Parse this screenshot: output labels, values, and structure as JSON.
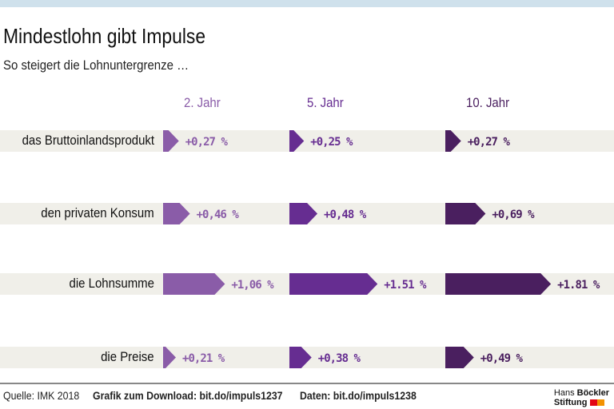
{
  "title": "Mindestlohn gibt Impulse",
  "subtitle": "So steigert die Lohnuntergrenze …",
  "chart_data": {
    "type": "bar",
    "title": "Mindestlohn gibt Impulse",
    "subtitle": "So steigert die Lohnuntergrenze …",
    "categories": [
      "das Bruttoinlandsprodukt",
      "den privaten Konsum",
      "die Lohnsumme",
      "die Preise"
    ],
    "series": [
      {
        "name": "2. Jahr",
        "color": "#8a5ca8",
        "values": [
          0.27,
          0.46,
          1.06,
          0.21
        ],
        "labels": [
          "+0,27 %",
          "+0,46 %",
          "+1,06 %",
          "+0,21 %"
        ]
      },
      {
        "name": "5. Jahr",
        "color": "#662d91",
        "values": [
          0.25,
          0.48,
          1.51,
          0.38
        ],
        "labels": [
          "+0,25 %",
          "+0,48 %",
          "+1.51 %",
          "+0,38 %"
        ]
      },
      {
        "name": "10. Jahr",
        "color": "#4a1f5f",
        "values": [
          0.27,
          0.69,
          1.81,
          0.49
        ],
        "labels": [
          "+0,27 %",
          "+0,69 %",
          "+1.81 %",
          "+0,49 %"
        ]
      }
    ],
    "unit": "%"
  },
  "footer": {
    "source": "Quelle: IMK 2018",
    "download": "Grafik zum Download: bit.do/impuls1237",
    "data": "Daten: bit.do/impuls1238",
    "logo_line1_a": "Hans",
    "logo_line1_b": "Böckler",
    "logo_line2": "Stiftung",
    "logo_colors": [
      "#e30613",
      "#f39200"
    ]
  }
}
